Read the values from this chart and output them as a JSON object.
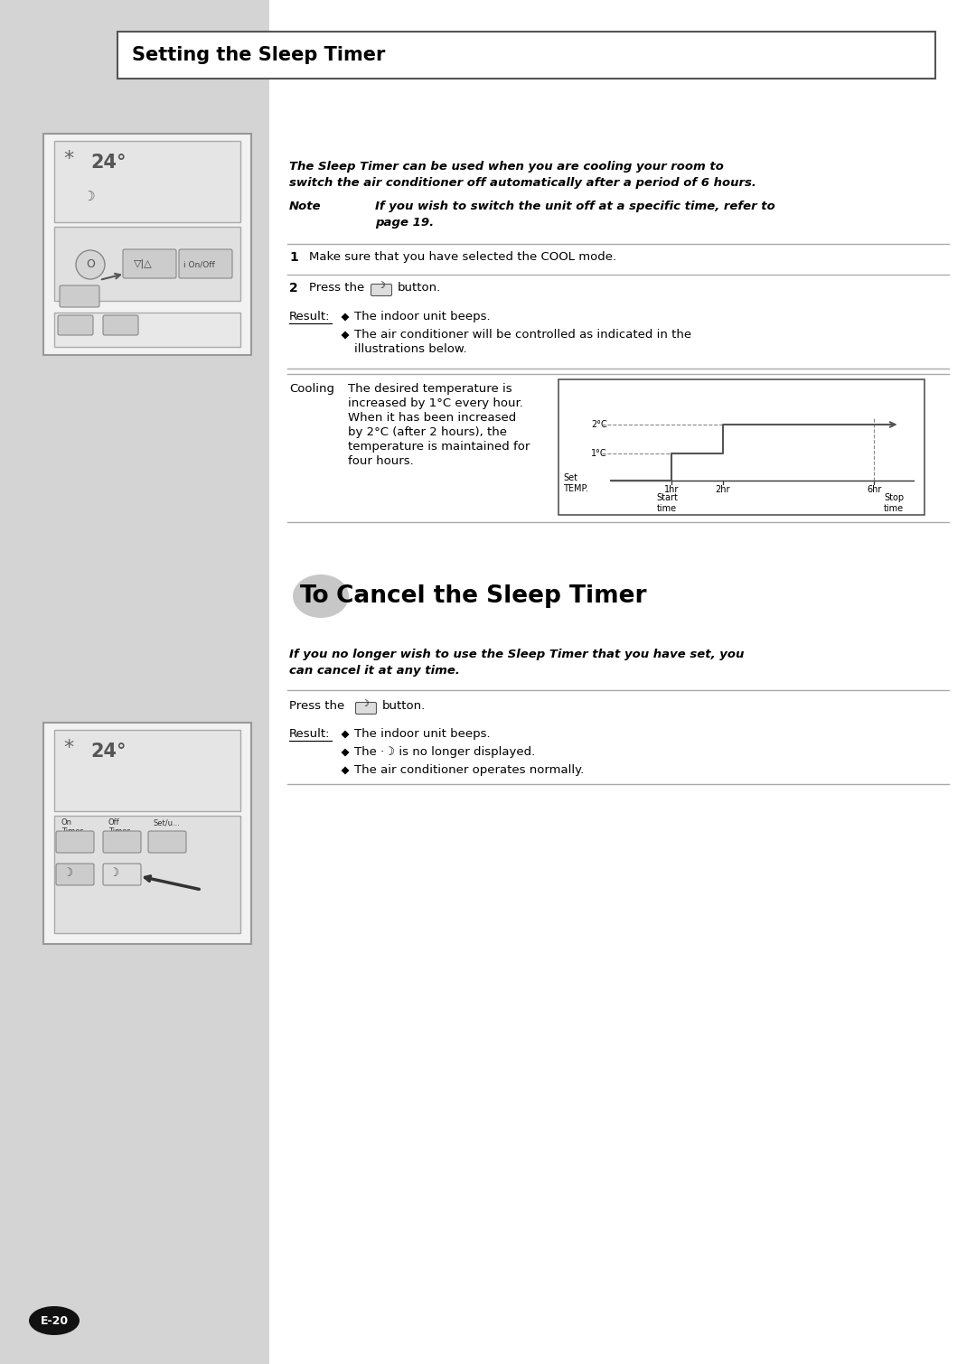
{
  "page_bg": "#d4d4d4",
  "content_bg": "#ffffff",
  "title_section": "Setting the Sleep Timer",
  "title_box_color": "#ffffff",
  "title_box_border": "#555555",
  "intro_text_line1": "The Sleep Timer can be used when you are cooling your room to",
  "intro_text_line2": "switch the air conditioner off automatically after a period of 6 hours.",
  "note_label": "Note",
  "note_text_line1": "If you wish to switch the unit off at a specific time, refer to",
  "note_text_line2": "page 19.",
  "step1_text": "Make sure that you have selected the COOL mode.",
  "step2_prefix": "Press the",
  "step2_suffix": "button.",
  "result_label": "Result:",
  "result1": "The indoor unit beeps.",
  "result2a": "The air conditioner will be controlled as indicated in the",
  "result2b": "illustrations below.",
  "cooling_label": "Cooling",
  "cooling_text_line1": "The desired temperature is",
  "cooling_text_line2": "increased by 1°C every hour.",
  "cooling_text_line3": "When it has been increased",
  "cooling_text_line4": "by 2°C (after 2 hours), the",
  "cooling_text_line5": "temperature is maintained for",
  "cooling_text_line6": "four hours.",
  "graph_set_temp": "Set\nTEMP.",
  "graph_y1": "1°C",
  "graph_y2": "2°C",
  "graph_x1": "1hr",
  "graph_x2": "2hr",
  "graph_x3": "6hr",
  "graph_start": "Start\ntime",
  "graph_stop": "Stop\ntime",
  "section2_to": "To",
  "section2_rest": "Cancel the Sleep Timer",
  "cancel_intro_line1": "If you no longer wish to use the Sleep Timer that you have set, you",
  "cancel_intro_line2": "can cancel it at any time.",
  "cancel_press_prefix": "Press the",
  "cancel_press_suffix": "button.",
  "cancel_result_label": "Result:",
  "cancel_result1": "The indoor unit beeps.",
  "cancel_result2": "The ·☽ is no longer displayed.",
  "cancel_result3": "The air conditioner operates normally.",
  "page_num": "E-20",
  "line_color": "#aaaaaa",
  "text_color": "#000000"
}
